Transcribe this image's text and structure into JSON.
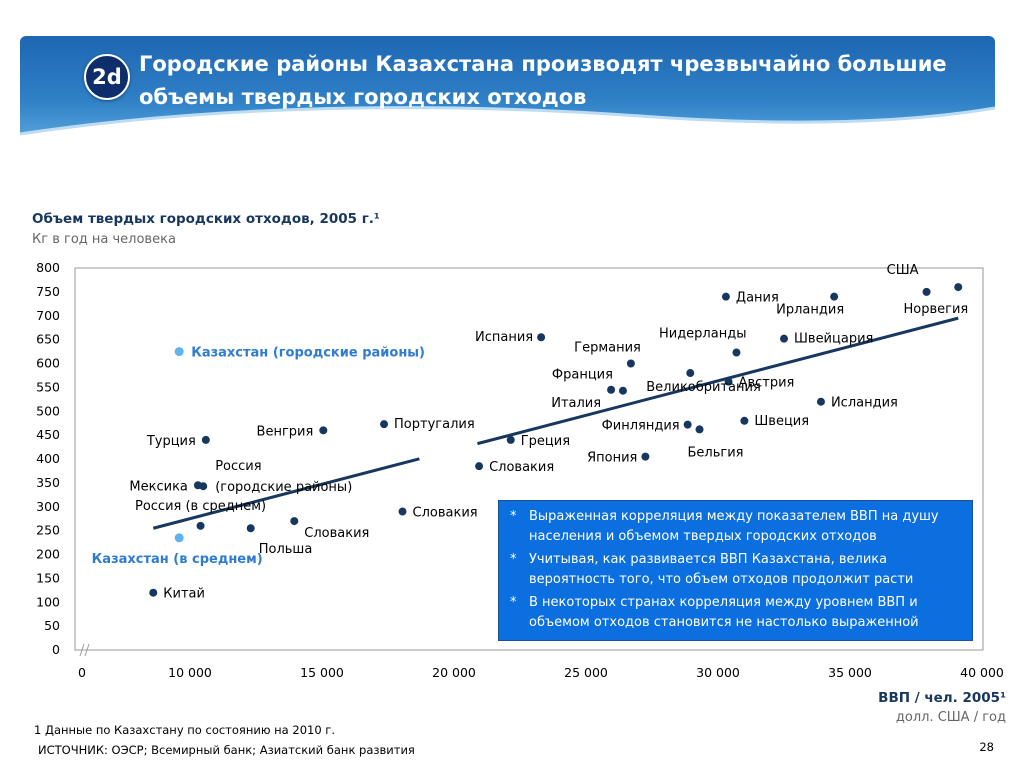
{
  "slide": {
    "badge": "2d",
    "title": "Городские районы Казахстана производят чрезвычайно большие объемы твердых городских отходов",
    "footnote": "1 Данные по Казахстану по состоянию на 2010 г.",
    "source": "ИСТОЧНИК: ОЭСР; Всемирный банк; Азиатский банк развития",
    "page_number": "28"
  },
  "colors": {
    "header": "#2f80c6",
    "badge": "#0e2d6b",
    "point": "#17375e",
    "highlight": "#5fb4f0",
    "trend": "#17375e",
    "callout": "#0b6fe0"
  },
  "chart_data": {
    "type": "scatter",
    "title": "Объем твердых городских отходов, 2005 г.¹",
    "ylabel": "Кг в год на человека",
    "xlabel": "ВВП / чел. 2005¹",
    "xlabel_unit": "долл. США / год",
    "xlim": [
      0,
      40000
    ],
    "ylim": [
      0,
      800
    ],
    "xticks": [
      0,
      10000,
      15000,
      20000,
      25000,
      30000,
      35000,
      40000
    ],
    "xtick_labels": [
      "0",
      "10 000",
      "15 000",
      "20 000",
      "25 000",
      "30 000",
      "35 000",
      "40 000"
    ],
    "yticks": [
      0,
      50,
      100,
      150,
      200,
      250,
      300,
      350,
      400,
      450,
      500,
      550,
      600,
      650,
      700,
      750,
      800
    ],
    "x_axis_break": true,
    "grid": false,
    "trend_line": {
      "x": [
        6600,
        39100
      ],
      "y": [
        255,
        695
      ]
    },
    "points": [
      {
        "label": "Китай",
        "x": 6600,
        "y": 120
      },
      {
        "label": "Казахстан (в среднем)",
        "x": 9000,
        "y": 235,
        "highlight": true
      },
      {
        "label": "Казахстан (городские районы)",
        "x": 9000,
        "y": 625,
        "highlight": true
      },
      {
        "label": "Мексика",
        "x": 10300,
        "y": 345
      },
      {
        "label": "Россия (в среднем)",
        "x": 10400,
        "y": 260
      },
      {
        "label": "Турция",
        "x": 10600,
        "y": 440
      },
      {
        "label": "Россия (городские районы)",
        "x": 10500,
        "y": 343
      },
      {
        "label": "Польша",
        "x": 12300,
        "y": 255
      },
      {
        "label": "Словакия",
        "x": 13950,
        "y": 270
      },
      {
        "label": "Венгрия",
        "x": 15050,
        "y": 460
      },
      {
        "label": "Португалия",
        "x": 17350,
        "y": 473
      },
      {
        "label": "Словакия",
        "x": 18050,
        "y": 290
      },
      {
        "label": "Словакия",
        "x": 20950,
        "y": 385
      },
      {
        "label": "Греция",
        "x": 22150,
        "y": 440
      },
      {
        "label": "Испания",
        "x": 23300,
        "y": 655
      },
      {
        "label": "Италия",
        "x": 25950,
        "y": 545
      },
      {
        "label": "Франция",
        "x": 26400,
        "y": 543
      },
      {
        "label": "Германия",
        "x": 26700,
        "y": 600
      },
      {
        "label": "Япония",
        "x": 27250,
        "y": 405
      },
      {
        "label": "Финляндия",
        "x": 28850,
        "y": 472
      },
      {
        "label": "Великобритания",
        "x": 28950,
        "y": 580
      },
      {
        "label": "Бельгия",
        "x": 29300,
        "y": 462
      },
      {
        "label": "Дания",
        "x": 30300,
        "y": 740
      },
      {
        "label": "Австрия",
        "x": 30400,
        "y": 562
      },
      {
        "label": "Нидерланды",
        "x": 30700,
        "y": 623
      },
      {
        "label": "Швеция",
        "x": 31000,
        "y": 480
      },
      {
        "label": "Швейцария",
        "x": 32500,
        "y": 652
      },
      {
        "label": "Исландия",
        "x": 33900,
        "y": 520
      },
      {
        "label": "Ирландия",
        "x": 34400,
        "y": 740
      },
      {
        "label": "США",
        "x": 37900,
        "y": 750
      },
      {
        "label": "Норвегия",
        "x": 39100,
        "y": 760
      }
    ]
  },
  "callout": {
    "bullet": "*",
    "items": [
      "Выраженная корреляция между показателем ВВП на душу населения и объемом твердых городских отходов",
      "Учитывая, как развивается ВВП Казахстана, велика вероятность того, что объем отходов продолжит расти",
      "В некоторых странах корреляция между уровнем ВВП и объемом отходов становится не настолько выраженной"
    ]
  }
}
